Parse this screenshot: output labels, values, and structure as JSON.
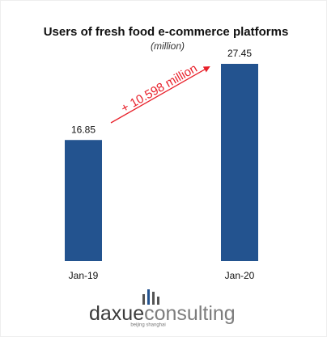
{
  "chart_data": {
    "type": "bar",
    "title": "Users of fresh food e-commerce platforms",
    "subtitle": "(million)",
    "categories": [
      "Jan-19",
      "Jan-20"
    ],
    "values": [
      16.85,
      27.45
    ],
    "color": "#23538f",
    "annotation": "+ 10.598 million",
    "annotation_color": "#e8202a"
  },
  "logo": {
    "text_dark": "daxue",
    "text_light": "consulting",
    "tagline": "beijing shanghai"
  }
}
